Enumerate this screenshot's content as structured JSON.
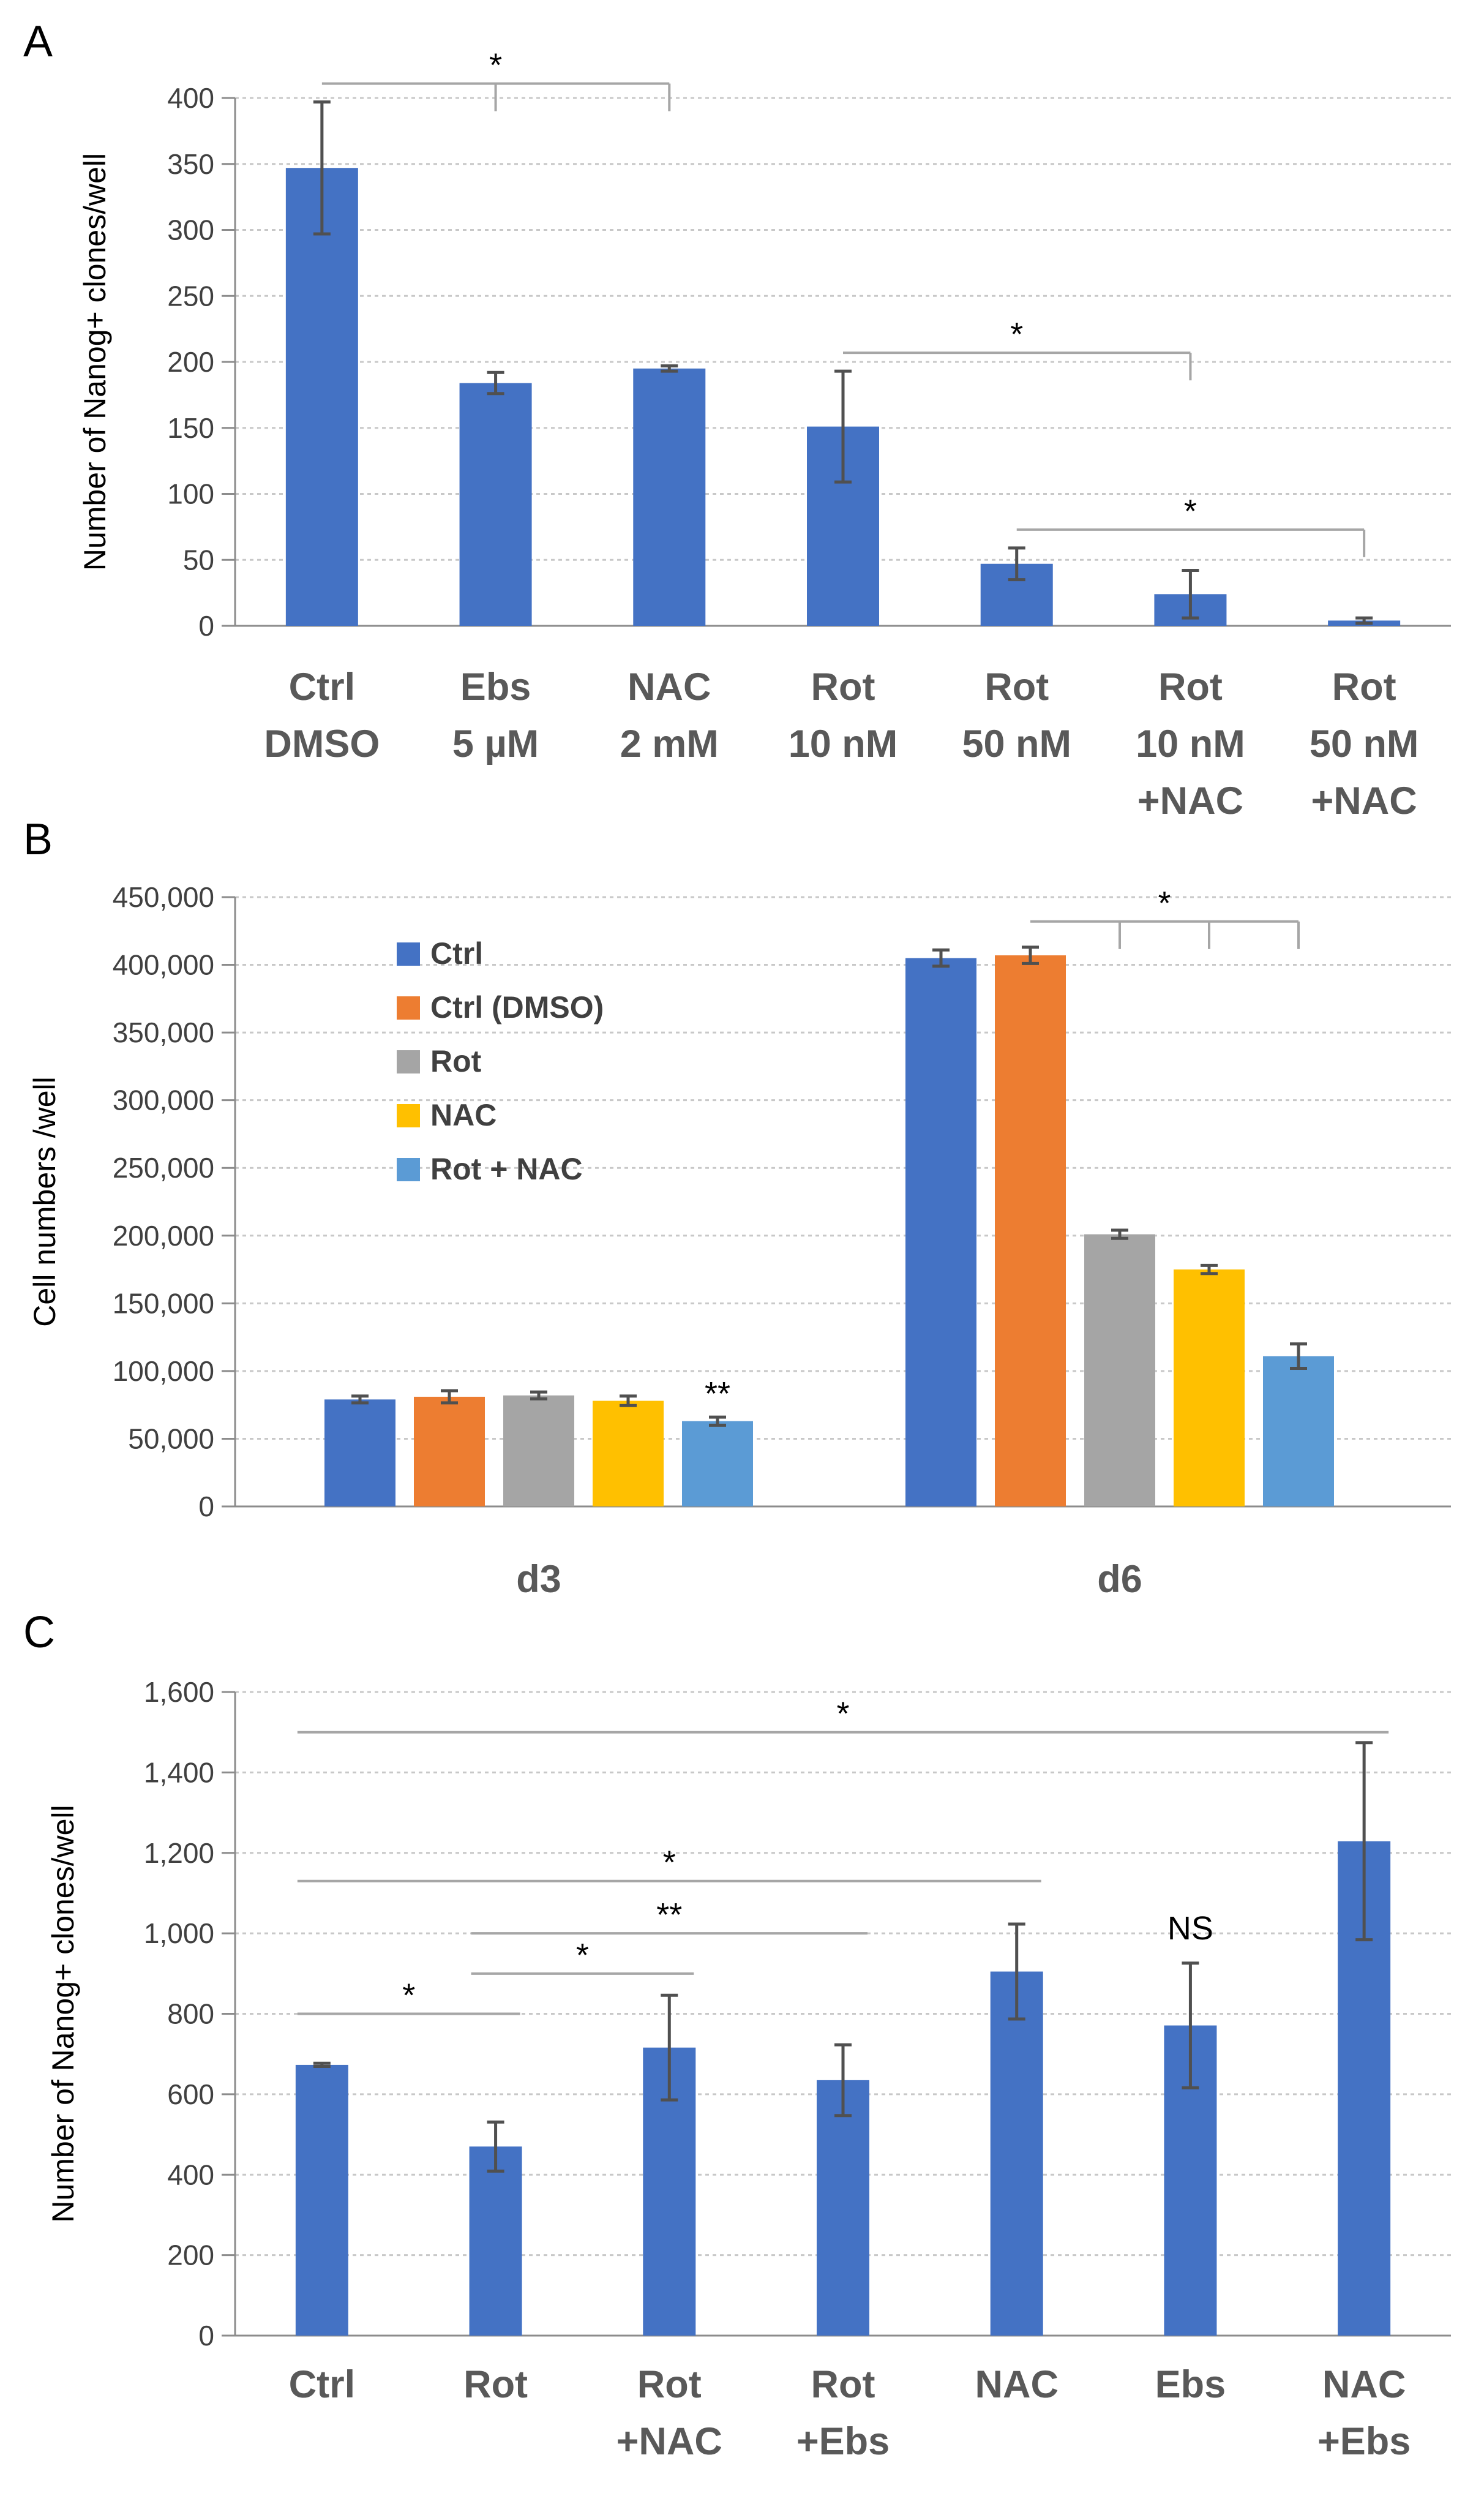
{
  "chart_data": [
    {
      "id": "A",
      "panel_label": "A",
      "type": "bar",
      "ylabel": "Number of Nanog+ clones/well",
      "ylim": [
        0,
        400
      ],
      "yticks": [
        0,
        50,
        100,
        150,
        200,
        250,
        300,
        350,
        400
      ],
      "ytick_labels": [
        "0",
        "50",
        "100",
        "150",
        "200",
        "250",
        "300",
        "350",
        "400"
      ],
      "grid": true,
      "categories": [
        [
          "Ctrl",
          "DMSO"
        ],
        [
          "Ebs",
          "5 µM"
        ],
        [
          "NAC",
          "2 mM"
        ],
        [
          "Rot",
          "10 nM"
        ],
        [
          "Rot",
          "50 nM"
        ],
        [
          "Rot",
          "10 nM",
          "+NAC"
        ],
        [
          "Rot",
          "50 nM",
          "+NAC"
        ]
      ],
      "values": [
        347,
        184,
        195,
        151,
        47,
        24,
        4
      ],
      "errors": [
        50,
        8,
        2,
        42,
        12,
        18,
        2
      ],
      "bar_color": "#4472C4",
      "annotations": [
        {
          "text": "*",
          "from": 0,
          "to": [
            1,
            2
          ]
        },
        {
          "text": "*",
          "from": 3,
          "to": [
            5
          ]
        },
        {
          "text": "*",
          "from": 4,
          "to": [
            6
          ]
        }
      ]
    },
    {
      "id": "B",
      "panel_label": "B",
      "type": "bar",
      "ylabel": "Cell numbers /well",
      "ylim": [
        0,
        450000
      ],
      "yticks": [
        0,
        50000,
        100000,
        150000,
        200000,
        250000,
        300000,
        350000,
        400000,
        450000
      ],
      "ytick_labels": [
        "0",
        "50,000",
        "100,000",
        "150,000",
        "200,000",
        "250,000",
        "300,000",
        "350,000",
        "400,000",
        "450,000"
      ],
      "grid": true,
      "categories": [
        "d3",
        "d6"
      ],
      "legend_position": "top-left",
      "series": [
        {
          "name": "Ctrl",
          "color": "#4472C4",
          "values": [
            79000,
            405000
          ],
          "errors": [
            2500,
            6000
          ]
        },
        {
          "name": "Ctrl (DMSO)",
          "color": "#ED7D31",
          "values": [
            81000,
            407000
          ],
          "errors": [
            4500,
            6000
          ]
        },
        {
          "name": "Rot",
          "color": "#A5A5A5",
          "values": [
            82000,
            201000
          ],
          "errors": [
            2500,
            3000
          ]
        },
        {
          "name": "NAC",
          "color": "#FFC000",
          "values": [
            78000,
            175000
          ],
          "errors": [
            3500,
            3000
          ]
        },
        {
          "name": "Rot + NAC",
          "color": "#5B9BD5",
          "values": [
            63000,
            111000
          ],
          "errors": [
            3000,
            9000
          ]
        }
      ],
      "annotations": [
        {
          "text": "**",
          "group": 0,
          "series": 4
        },
        {
          "text": "*",
          "group": 1,
          "from_series": 1,
          "to_series": [
            2,
            3,
            4
          ]
        }
      ]
    },
    {
      "id": "C",
      "panel_label": "C",
      "type": "bar",
      "ylabel": "Number of Nanog+ clones/well",
      "ylim": [
        0,
        1600
      ],
      "yticks": [
        0,
        200,
        400,
        600,
        800,
        1000,
        1200,
        1400,
        1600
      ],
      "ytick_labels": [
        "0",
        "200",
        "400",
        "600",
        "800",
        "1,000",
        "1,200",
        "1,400",
        "1,600"
      ],
      "grid": true,
      "categories": [
        [
          "Ctrl"
        ],
        [
          "Rot"
        ],
        [
          "Rot",
          "+NAC"
        ],
        [
          "Rot",
          "+Ebs"
        ],
        [
          "NAC"
        ],
        [
          "Ebs"
        ],
        [
          "NAC",
          "+Ebs"
        ]
      ],
      "values": [
        673,
        470,
        716,
        635,
        905,
        771,
        1229
      ],
      "errors": [
        4,
        61,
        130,
        88,
        118,
        155,
        245
      ],
      "bar_color": "#4472C4",
      "annotations": [
        {
          "text": "*",
          "from": 0,
          "to": 1,
          "level": 800
        },
        {
          "text": "*",
          "from": 1,
          "to": 2,
          "level": 900
        },
        {
          "text": "**",
          "from": 1,
          "to": 3,
          "level": 1000
        },
        {
          "text": "*",
          "from": 0,
          "to": 4,
          "level": 1130
        },
        {
          "text": "*",
          "from": 0,
          "to": 6,
          "level": 1500
        },
        {
          "text": "NS",
          "above": 5,
          "level": 1000
        }
      ]
    }
  ]
}
